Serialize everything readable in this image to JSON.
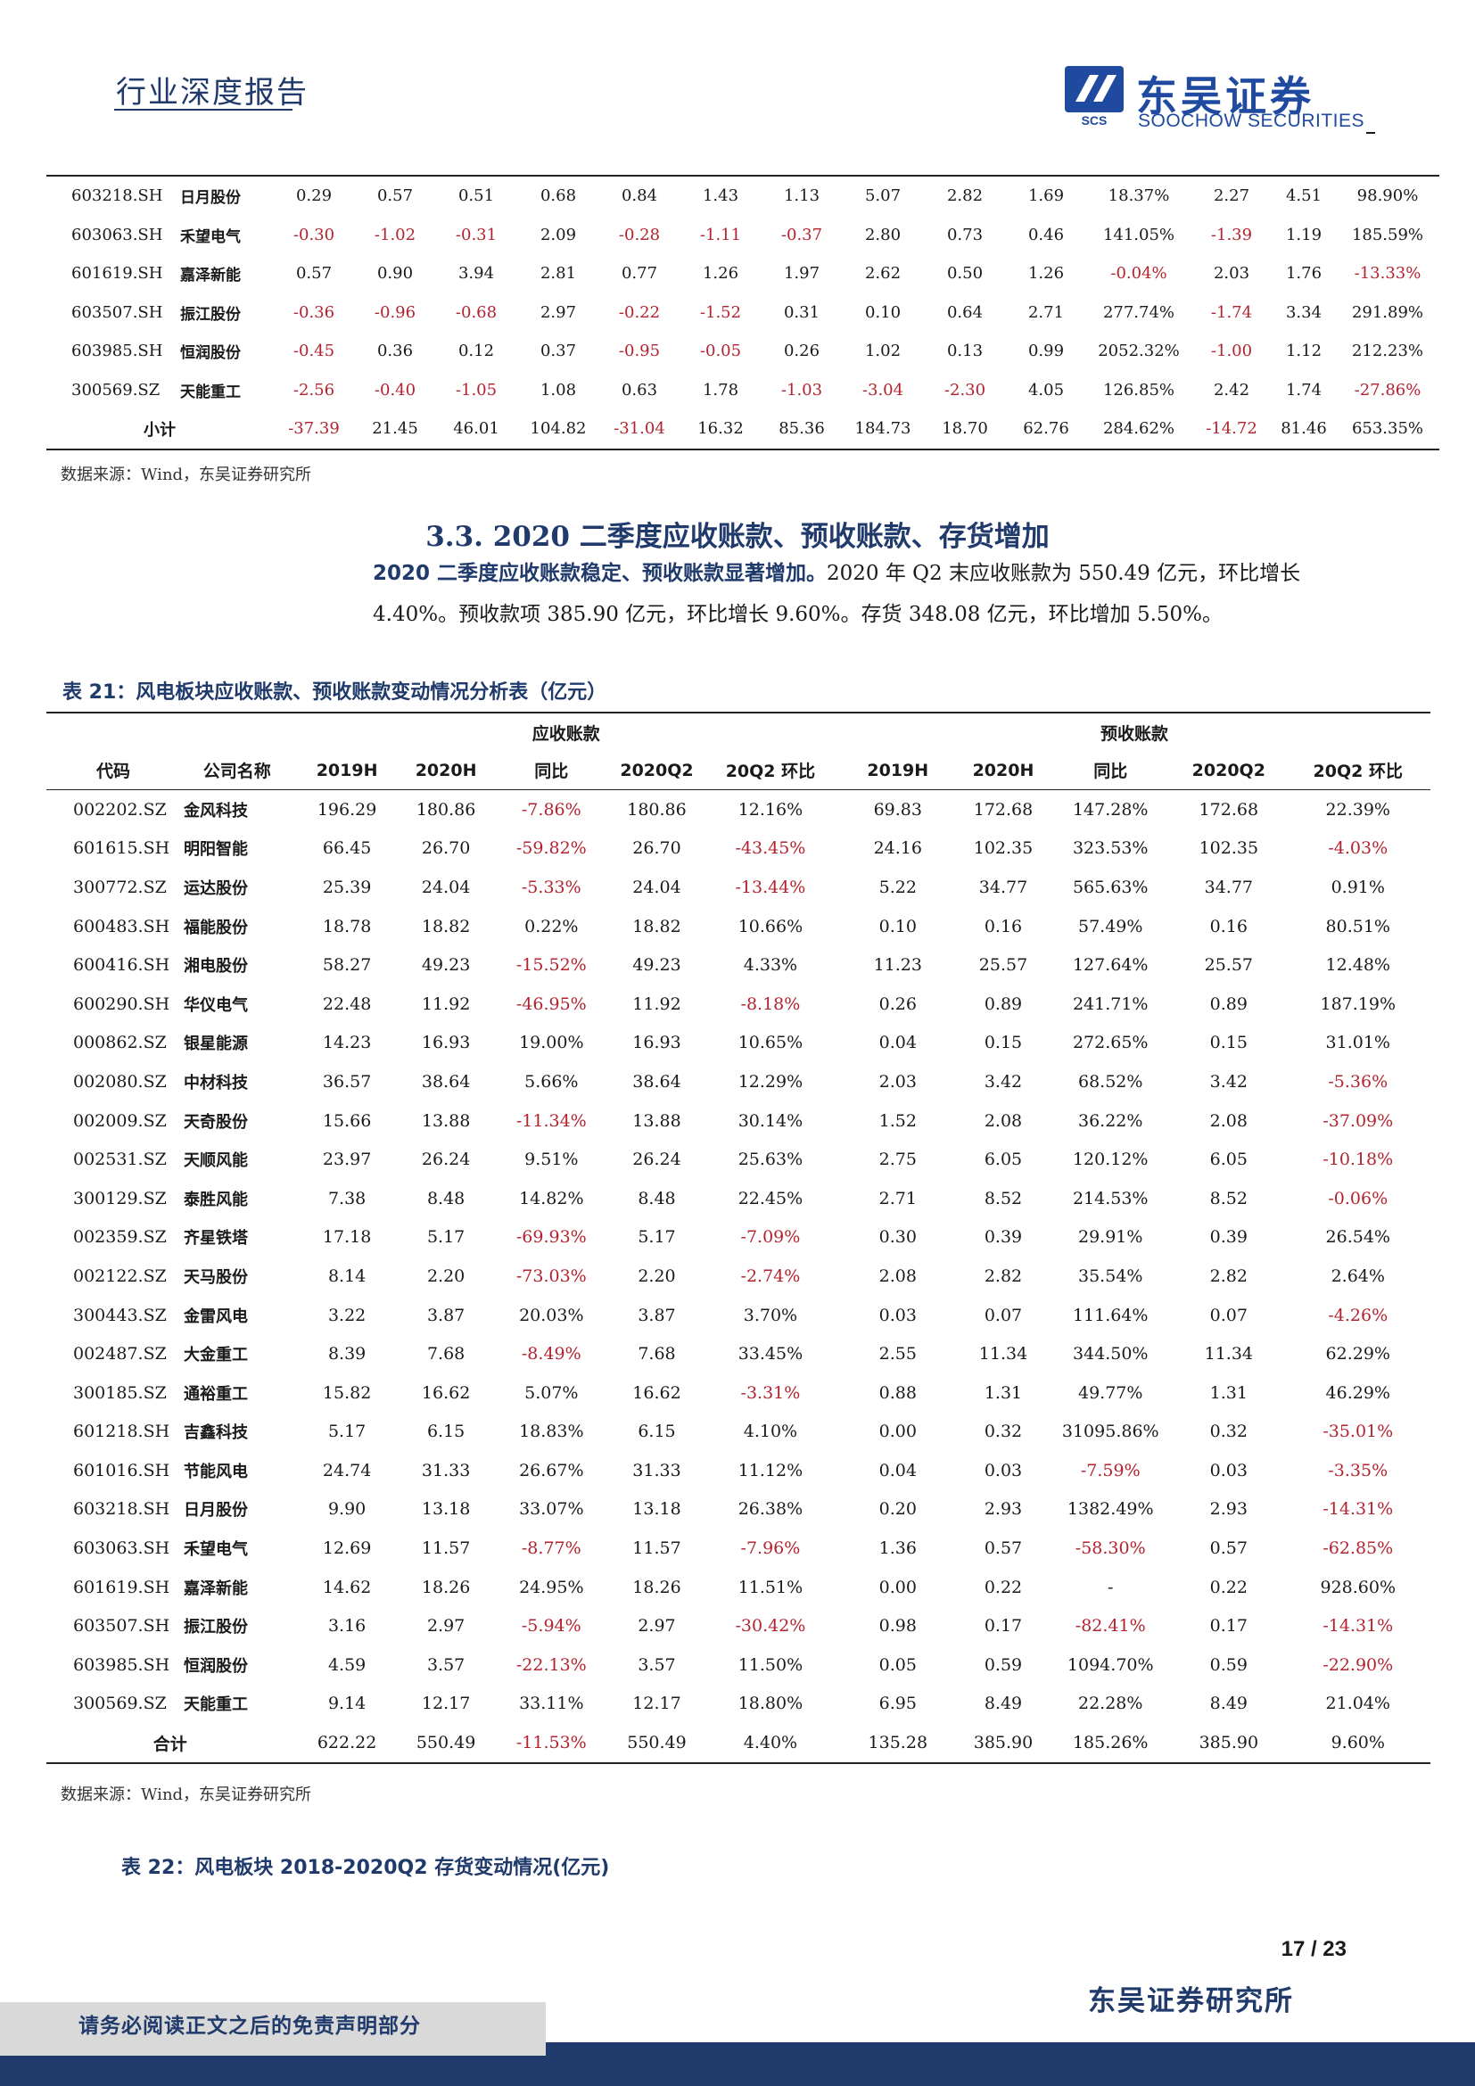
{
  "header": {
    "title": "行业深度报告",
    "logo_cn": "东吴证券",
    "logo_en": "SOOCHOW SECURITIES",
    "logo_mark_text": "SCS",
    "brand_color": "#1f4aa0"
  },
  "table1": {
    "rows": [
      {
        "code": "603218.SH",
        "name": "日月股份",
        "v": [
          "0.29",
          "0.57",
          "0.51",
          "0.68",
          "0.84",
          "1.43",
          "1.13",
          "5.07",
          "2.82",
          "1.69",
          "18.37%",
          "2.27",
          "4.51",
          "98.90%"
        ]
      },
      {
        "code": "603063.SH",
        "name": "禾望电气",
        "v": [
          "-0.30",
          "-1.02",
          "-0.31",
          "2.09",
          "-0.28",
          "-1.11",
          "-0.37",
          "2.80",
          "0.73",
          "0.46",
          "141.05%",
          "-1.39",
          "1.19",
          "185.59%"
        ]
      },
      {
        "code": "601619.SH",
        "name": "嘉泽新能",
        "v": [
          "0.57",
          "0.90",
          "3.94",
          "2.81",
          "0.77",
          "1.26",
          "1.97",
          "2.62",
          "0.50",
          "1.26",
          "-0.04%",
          "2.03",
          "1.76",
          "-13.33%"
        ]
      },
      {
        "code": "603507.SH",
        "name": "振江股份",
        "v": [
          "-0.36",
          "-0.96",
          "-0.68",
          "2.97",
          "-0.22",
          "-1.52",
          "0.31",
          "0.10",
          "0.64",
          "2.71",
          "277.74%",
          "-1.74",
          "3.34",
          "291.89%"
        ]
      },
      {
        "code": "603985.SH",
        "name": "恒润股份",
        "v": [
          "-0.45",
          "0.36",
          "0.12",
          "0.37",
          "-0.95",
          "-0.05",
          "0.26",
          "1.02",
          "0.13",
          "0.99",
          "2052.32%",
          "-1.00",
          "1.12",
          "212.23%"
        ]
      },
      {
        "code": "300569.SZ",
        "name": "天能重工",
        "v": [
          "-2.56",
          "-0.40",
          "-1.05",
          "1.08",
          "0.63",
          "1.78",
          "-1.03",
          "-3.04",
          "-2.30",
          "4.05",
          "126.85%",
          "2.42",
          "1.74",
          "-27.86%"
        ]
      }
    ],
    "subtotal": {
      "label": "小计",
      "v": [
        "-37.39",
        "21.45",
        "46.01",
        "104.82",
        "-31.04",
        "16.32",
        "85.36",
        "184.73",
        "18.70",
        "62.76",
        "284.62%",
        "-14.72",
        "81.46",
        "653.35%"
      ]
    }
  },
  "source1": "数据来源：Wind，东吴证券研究所",
  "section": {
    "heading": "3.3. 2020 二季度应收账款、预收账款、存货增加",
    "para_lead": "2020 二季度应收账款稳定、预收账款显著增加。",
    "para_line1_rest": "2020 年 Q2 末应收账款为 550.49 亿元，环比增长",
    "para_line2": "4.40%。预收款项 385.90 亿元，环比增长 9.60%。存货 348.08 亿元，环比增加 5.50%。"
  },
  "table21": {
    "caption": "表 21：风电板块应收账款、预收账款变动情况分析表（亿元）",
    "group_receivable": "应收账款",
    "group_advance": "预收账款",
    "columns": [
      "代码",
      "公司名称",
      "2019H",
      "2020H",
      "同比",
      "2020Q2",
      "20Q2 环比",
      "2019H",
      "2020H",
      "同比",
      "2020Q2",
      "20Q2 环比"
    ],
    "rows": [
      {
        "code": "002202.SZ",
        "name": "金风科技",
        "v": [
          "196.29",
          "180.86",
          "-7.86%",
          "180.86",
          "12.16%",
          "69.83",
          "172.68",
          "147.28%",
          "172.68",
          "22.39%"
        ]
      },
      {
        "code": "601615.SH",
        "name": "明阳智能",
        "v": [
          "66.45",
          "26.70",
          "-59.82%",
          "26.70",
          "-43.45%",
          "24.16",
          "102.35",
          "323.53%",
          "102.35",
          "-4.03%"
        ]
      },
      {
        "code": "300772.SZ",
        "name": "运达股份",
        "v": [
          "25.39",
          "24.04",
          "-5.33%",
          "24.04",
          "-13.44%",
          "5.22",
          "34.77",
          "565.63%",
          "34.77",
          "0.91%"
        ]
      },
      {
        "code": "600483.SH",
        "name": "福能股份",
        "v": [
          "18.78",
          "18.82",
          "0.22%",
          "18.82",
          "10.66%",
          "0.10",
          "0.16",
          "57.49%",
          "0.16",
          "80.51%"
        ]
      },
      {
        "code": "600416.SH",
        "name": "湘电股份",
        "v": [
          "58.27",
          "49.23",
          "-15.52%",
          "49.23",
          "4.33%",
          "11.23",
          "25.57",
          "127.64%",
          "25.57",
          "12.48%"
        ]
      },
      {
        "code": "600290.SH",
        "name": "华仪电气",
        "v": [
          "22.48",
          "11.92",
          "-46.95%",
          "11.92",
          "-8.18%",
          "0.26",
          "0.89",
          "241.71%",
          "0.89",
          "187.19%"
        ]
      },
      {
        "code": "000862.SZ",
        "name": "银星能源",
        "v": [
          "14.23",
          "16.93",
          "19.00%",
          "16.93",
          "10.65%",
          "0.04",
          "0.15",
          "272.65%",
          "0.15",
          "31.01%"
        ]
      },
      {
        "code": "002080.SZ",
        "name": "中材科技",
        "v": [
          "36.57",
          "38.64",
          "5.66%",
          "38.64",
          "12.29%",
          "2.03",
          "3.42",
          "68.52%",
          "3.42",
          "-5.36%"
        ]
      },
      {
        "code": "002009.SZ",
        "name": "天奇股份",
        "v": [
          "15.66",
          "13.88",
          "-11.34%",
          "13.88",
          "30.14%",
          "1.52",
          "2.08",
          "36.22%",
          "2.08",
          "-37.09%"
        ]
      },
      {
        "code": "002531.SZ",
        "name": "天顺风能",
        "v": [
          "23.97",
          "26.24",
          "9.51%",
          "26.24",
          "25.63%",
          "2.75",
          "6.05",
          "120.12%",
          "6.05",
          "-10.18%"
        ]
      },
      {
        "code": "300129.SZ",
        "name": "泰胜风能",
        "v": [
          "7.38",
          "8.48",
          "14.82%",
          "8.48",
          "22.45%",
          "2.71",
          "8.52",
          "214.53%",
          "8.52",
          "-0.06%"
        ]
      },
      {
        "code": "002359.SZ",
        "name": "齐星铁塔",
        "v": [
          "17.18",
          "5.17",
          "-69.93%",
          "5.17",
          "-7.09%",
          "0.30",
          "0.39",
          "29.91%",
          "0.39",
          "26.54%"
        ]
      },
      {
        "code": "002122.SZ",
        "name": "天马股份",
        "v": [
          "8.14",
          "2.20",
          "-73.03%",
          "2.20",
          "-2.74%",
          "2.08",
          "2.82",
          "35.54%",
          "2.82",
          "2.64%"
        ]
      },
      {
        "code": "300443.SZ",
        "name": "金雷风电",
        "v": [
          "3.22",
          "3.87",
          "20.03%",
          "3.87",
          "3.70%",
          "0.03",
          "0.07",
          "111.64%",
          "0.07",
          "-4.26%"
        ]
      },
      {
        "code": "002487.SZ",
        "name": "大金重工",
        "v": [
          "8.39",
          "7.68",
          "-8.49%",
          "7.68",
          "33.45%",
          "2.55",
          "11.34",
          "344.50%",
          "11.34",
          "62.29%"
        ]
      },
      {
        "code": "300185.SZ",
        "name": "通裕重工",
        "v": [
          "15.82",
          "16.62",
          "5.07%",
          "16.62",
          "-3.31%",
          "0.88",
          "1.31",
          "49.77%",
          "1.31",
          "46.29%"
        ]
      },
      {
        "code": "601218.SH",
        "name": "吉鑫科技",
        "v": [
          "5.17",
          "6.15",
          "18.83%",
          "6.15",
          "4.10%",
          "0.00",
          "0.32",
          "31095.86%",
          "0.32",
          "-35.01%"
        ]
      },
      {
        "code": "601016.SH",
        "name": "节能风电",
        "v": [
          "24.74",
          "31.33",
          "26.67%",
          "31.33",
          "11.12%",
          "0.04",
          "0.03",
          "-7.59%",
          "0.03",
          "-3.35%"
        ]
      },
      {
        "code": "603218.SH",
        "name": "日月股份",
        "v": [
          "9.90",
          "13.18",
          "33.07%",
          "13.18",
          "26.38%",
          "0.20",
          "2.93",
          "1382.49%",
          "2.93",
          "-14.31%"
        ]
      },
      {
        "code": "603063.SH",
        "name": "禾望电气",
        "v": [
          "12.69",
          "11.57",
          "-8.77%",
          "11.57",
          "-7.96%",
          "1.36",
          "0.57",
          "-58.30%",
          "0.57",
          "-62.85%"
        ]
      },
      {
        "code": "601619.SH",
        "name": "嘉泽新能",
        "v": [
          "14.62",
          "18.26",
          "24.95%",
          "18.26",
          "11.51%",
          "0.00",
          "0.22",
          "-",
          "0.22",
          "928.60%"
        ]
      },
      {
        "code": "603507.SH",
        "name": "振江股份",
        "v": [
          "3.16",
          "2.97",
          "-5.94%",
          "2.97",
          "-30.42%",
          "0.98",
          "0.17",
          "-82.41%",
          "0.17",
          "-14.31%"
        ]
      },
      {
        "code": "603985.SH",
        "name": "恒润股份",
        "v": [
          "4.59",
          "3.57",
          "-22.13%",
          "3.57",
          "11.50%",
          "0.05",
          "0.59",
          "1094.70%",
          "0.59",
          "-22.90%"
        ]
      },
      {
        "code": "300569.SZ",
        "name": "天能重工",
        "v": [
          "9.14",
          "12.17",
          "33.11%",
          "12.17",
          "18.80%",
          "6.95",
          "8.49",
          "22.28%",
          "8.49",
          "21.04%"
        ]
      }
    ],
    "total": {
      "label": "合计",
      "v": [
        "622.22",
        "550.49",
        "-11.53%",
        "550.49",
        "4.40%",
        "135.28",
        "385.90",
        "185.26%",
        "385.90",
        "9.60%"
      ]
    }
  },
  "source2": "数据来源：Wind，东吴证券研究所",
  "table22_caption": "表 22：风电板块 2018-2020Q2 存货变动情况(亿元)",
  "footer": {
    "page": "17 / 23",
    "institute": "东吴证券研究所",
    "disclaimer": "请务必阅读正文之后的免责声明部分"
  },
  "colors": {
    "negative": "#b3232f",
    "navy": "#1f3a6b"
  }
}
